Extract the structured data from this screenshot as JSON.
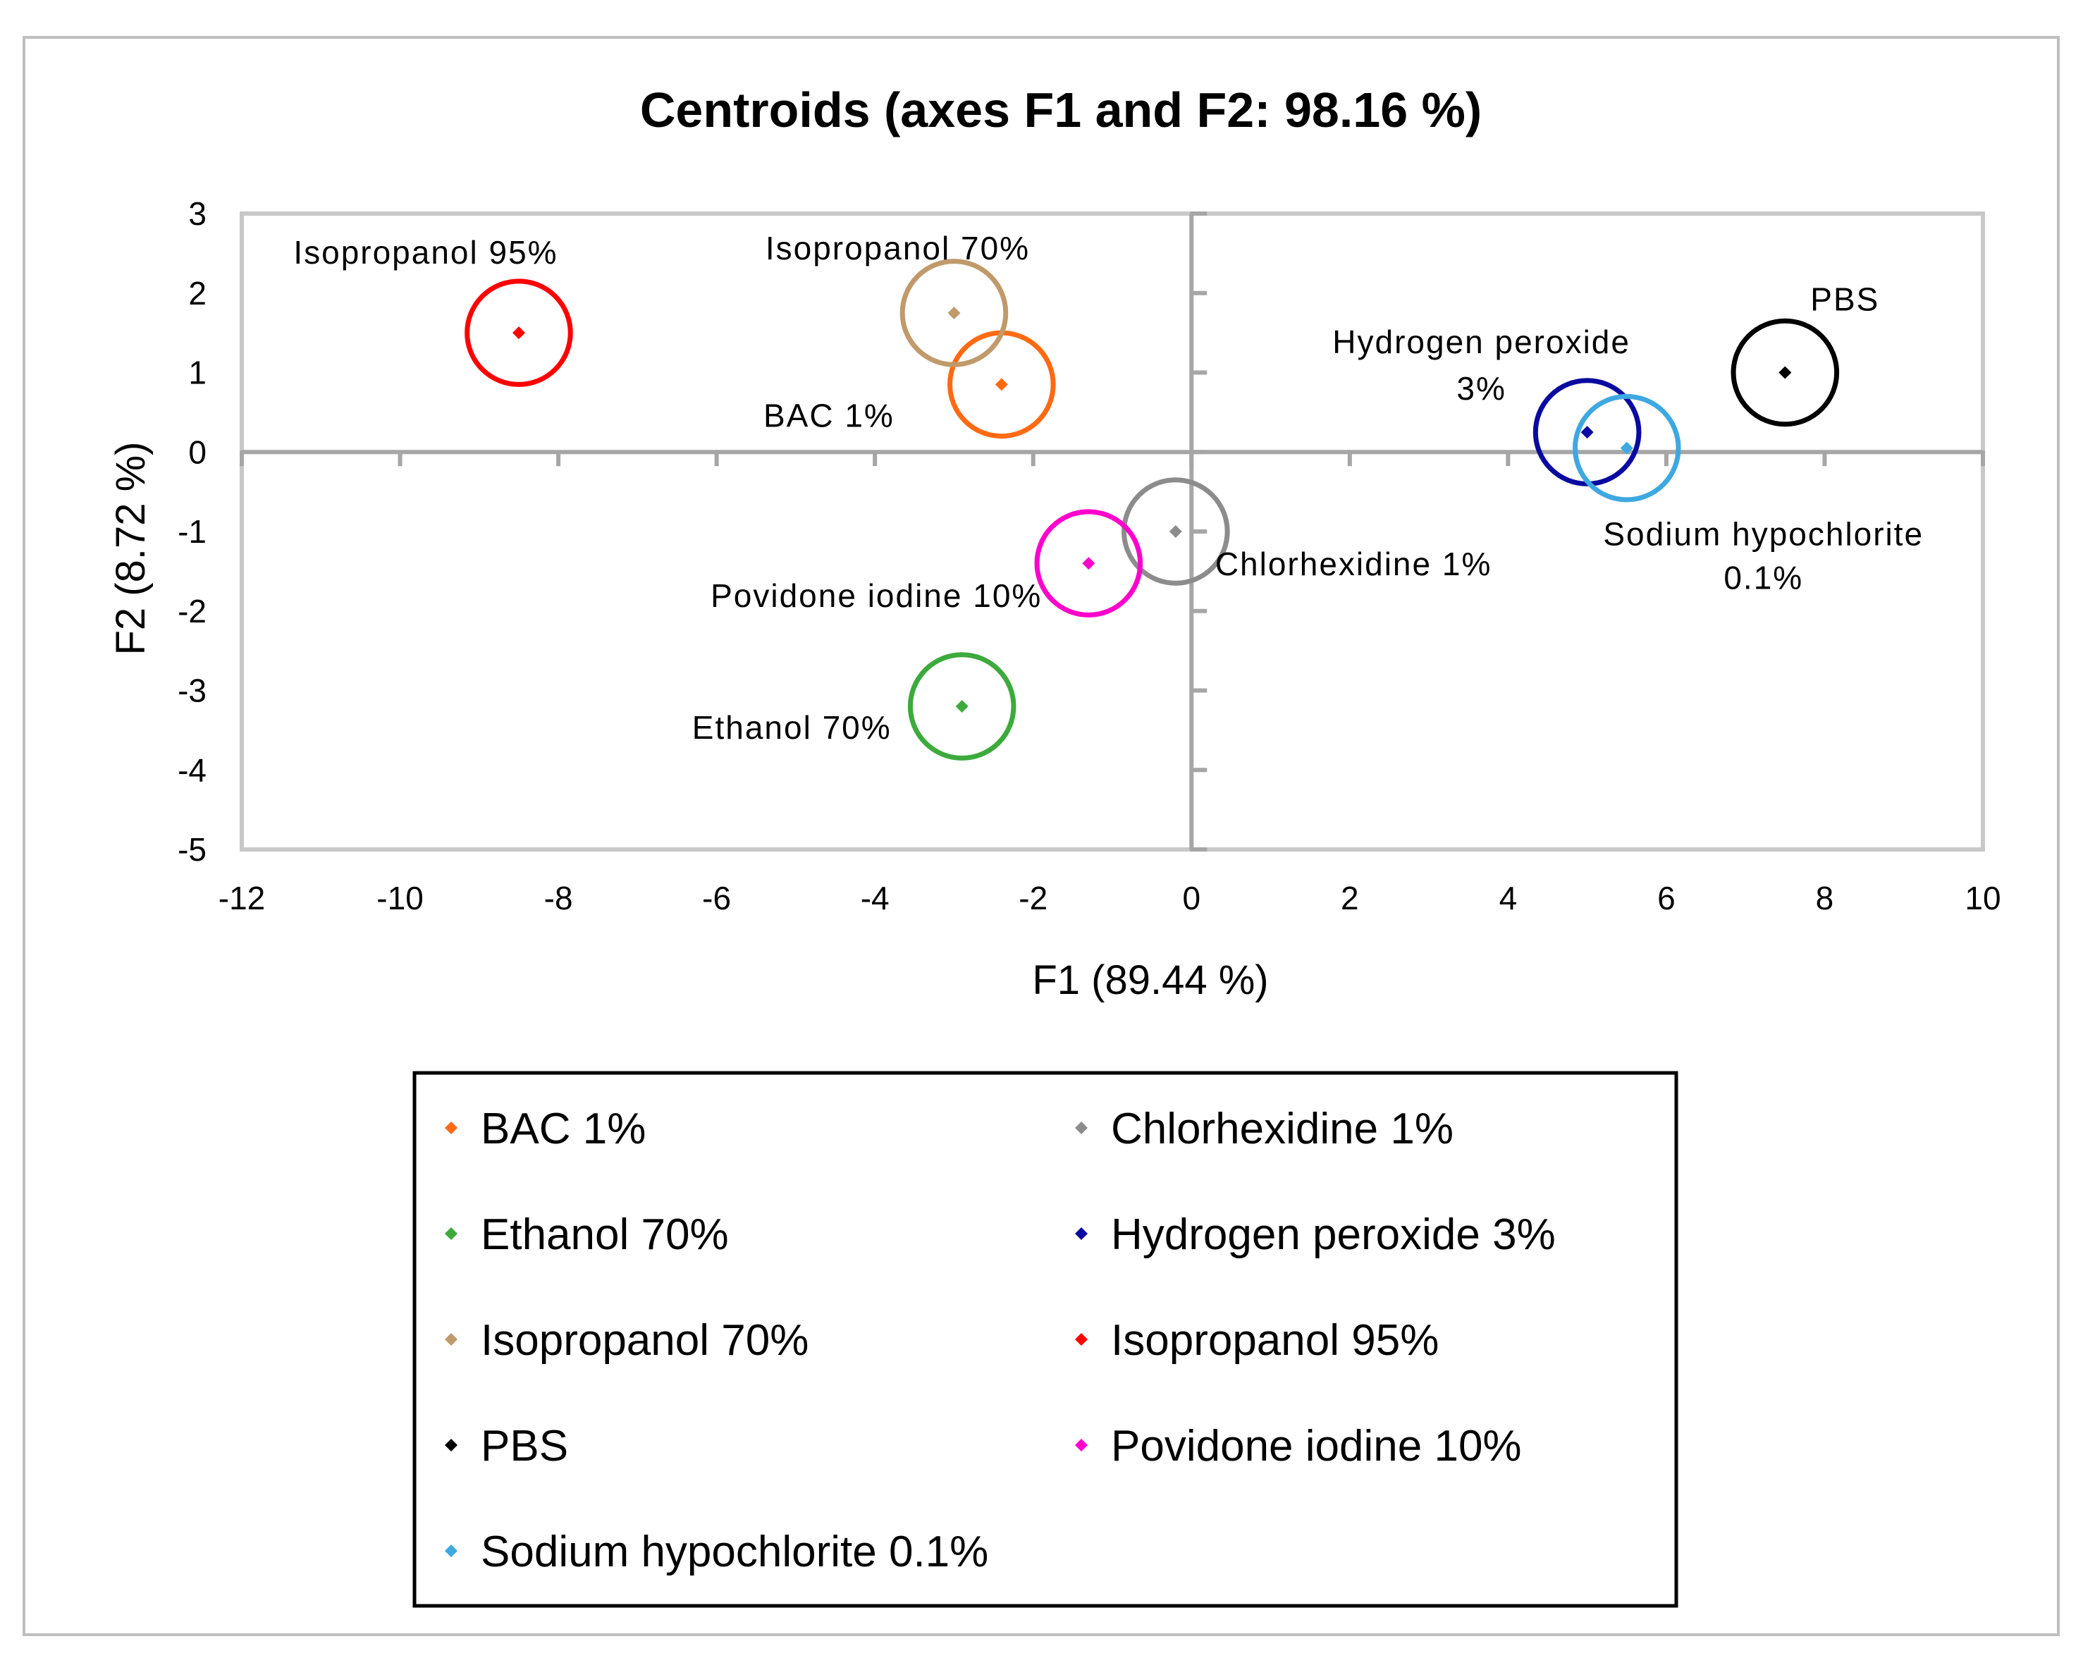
{
  "chart_data": {
    "type": "scatter",
    "title": "Centroids (axes F1 and F2: 98.16 %)",
    "xlabel": "F1 (89.44 %)",
    "ylabel": "F2 (8.72 %)",
    "xlim": [
      -12,
      10
    ],
    "ylim": [
      -5,
      3
    ],
    "xticks": [
      -12,
      -10,
      -8,
      -6,
      -4,
      -2,
      0,
      2,
      4,
      6,
      8,
      10
    ],
    "yticks": [
      3,
      2,
      1,
      0,
      -1,
      -2,
      -3,
      -4,
      -5
    ],
    "xtick_labels": [
      "-12",
      "-10",
      "-8",
      "-6",
      "-4",
      "-2",
      "0",
      "2",
      "4",
      "6",
      "8",
      "10"
    ],
    "ytick_labels": [
      "3",
      "2",
      "1",
      "0",
      "-1",
      "-2",
      "-3",
      "-4",
      "-5"
    ],
    "grid": false,
    "legend_position": "bottom",
    "series": [
      {
        "name": "BAC 1%",
        "x": -2.4,
        "y": 0.85,
        "radius": 0.65,
        "color": "#ff6a13",
        "labels": [
          "BAC 1%"
        ]
      },
      {
        "name": "Chlorhexidine 1%",
        "x": -0.2,
        "y": -1.0,
        "radius": 0.65,
        "color": "#8c8c8c",
        "labels": [
          "Chlorhexidine 1%"
        ]
      },
      {
        "name": "Ethanol 70%",
        "x": -2.9,
        "y": -3.2,
        "radius": 0.65,
        "color": "#3caa3c",
        "labels": [
          "Ethanol 70%"
        ]
      },
      {
        "name": "Hydrogen peroxide 3%",
        "x": 5.0,
        "y": 0.25,
        "radius": 0.65,
        "color": "#0a0aa0",
        "labels": [
          "Hydrogen peroxide",
          "3%"
        ]
      },
      {
        "name": "Isopropanol 70%",
        "x": -3.0,
        "y": 1.75,
        "radius": 0.65,
        "color": "#c09a6b",
        "labels": [
          "Isopropanol 70%"
        ]
      },
      {
        "name": "Isopropanol 95%",
        "x": -8.5,
        "y": 1.5,
        "radius": 0.65,
        "color": "#ff0000",
        "labels": [
          "Isopropanol 95%"
        ]
      },
      {
        "name": "PBS",
        "x": 7.5,
        "y": 1.0,
        "radius": 0.65,
        "color": "#000000",
        "labels": [
          "PBS"
        ]
      },
      {
        "name": "Povidone iodine 10%",
        "x": -1.3,
        "y": -1.4,
        "radius": 0.65,
        "color": "#ff00cc",
        "labels": [
          "Povidone iodine 10%"
        ]
      },
      {
        "name": "Sodium hypochlorite 0.1%",
        "x": 5.5,
        "y": 0.05,
        "radius": 0.65,
        "color": "#3ea8e0",
        "labels": [
          "Sodium hypochlorite",
          "0.1%"
        ]
      }
    ]
  }
}
